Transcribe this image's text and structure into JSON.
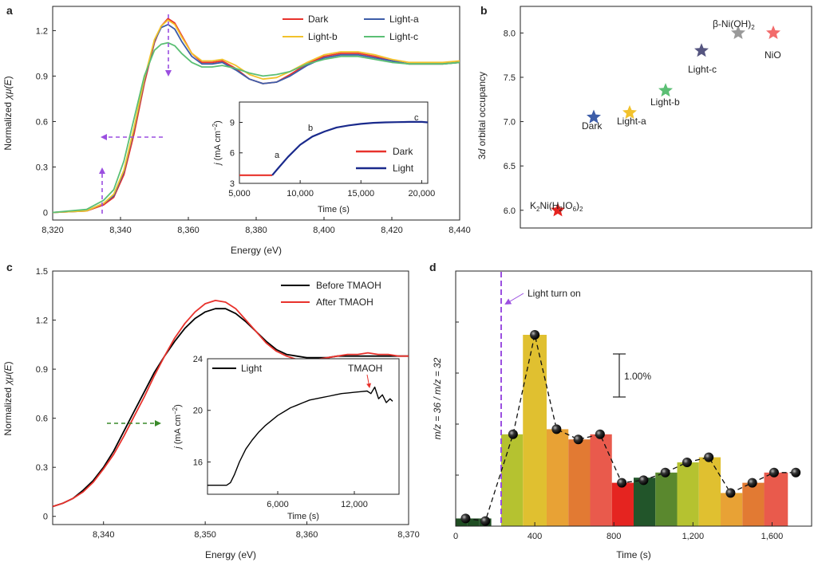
{
  "colors": {
    "dark": "#e8322c",
    "light_a": "#3d5da8",
    "light_b": "#f2c22c",
    "light_c": "#5bbf74",
    "light": "#1a2a8c",
    "before_tmaoh": "#000000",
    "after_tmaoh": "#e8322c",
    "arrow_purple": "#9b4fe0",
    "arrow_green": "#3a8a2a",
    "star_k2ni": "#e52420",
    "star_dark": "#3d5da8",
    "star_light_a": "#f2c22c",
    "star_light_b": "#5bbf74",
    "star_light_c": "#555580",
    "star_beta": "#999999",
    "star_nio": "#f26b6b"
  },
  "chart_data": [
    {
      "panel": "a",
      "type": "line",
      "xlabel": "Energy (eV)",
      "ylabel_pre": "Normalized ",
      "ylabel_chi": "χμ(",
      "ylabel_e": "E",
      "ylabel_post": ")",
      "xlim": [
        8320,
        8440
      ],
      "ylim": [
        -0.05,
        1.36
      ],
      "xticks": [
        8320,
        8340,
        8360,
        8380,
        8400,
        8420,
        8440
      ],
      "xtick_labels": [
        "8,320",
        "8,340",
        "8,360",
        "8,380",
        "8,400",
        "8,420",
        "8,440"
      ],
      "yticks": [
        0,
        0.3,
        0.6,
        0.9,
        1.2
      ],
      "ytick_labels": [
        "0",
        "0.3",
        "0.6",
        "0.9",
        "1.2"
      ],
      "legend": [
        "Dark",
        "Light-a",
        "Light-b",
        "Light-c"
      ],
      "series": [
        {
          "name": "Dark",
          "color_key": "dark",
          "x": [
            8320,
            8330,
            8335,
            8338,
            8341,
            8344,
            8347,
            8350,
            8352,
            8354,
            8356,
            8358,
            8361,
            8364,
            8367,
            8370,
            8374,
            8378,
            8382,
            8386,
            8390,
            8395,
            8400,
            8405,
            8410,
            8415,
            8420,
            8425,
            8430,
            8435,
            8440
          ],
          "y": [
            0,
            0.01,
            0.05,
            0.1,
            0.25,
            0.52,
            0.85,
            1.12,
            1.23,
            1.28,
            1.25,
            1.17,
            1.05,
            0.99,
            0.99,
            1.0,
            0.95,
            0.88,
            0.85,
            0.86,
            0.91,
            0.98,
            1.03,
            1.05,
            1.05,
            1.03,
            1.0,
            0.98,
            0.98,
            0.98,
            0.99
          ]
        },
        {
          "name": "Light-a",
          "color_key": "light_a",
          "x": [
            8320,
            8330,
            8335,
            8338,
            8341,
            8344,
            8347,
            8350,
            8352,
            8354,
            8356,
            8358,
            8361,
            8364,
            8367,
            8370,
            8374,
            8378,
            8382,
            8386,
            8390,
            8395,
            8400,
            8405,
            8410,
            8415,
            8420,
            8425,
            8430,
            8435,
            8440
          ],
          "y": [
            0,
            0.01,
            0.06,
            0.11,
            0.27,
            0.55,
            0.87,
            1.13,
            1.22,
            1.24,
            1.21,
            1.13,
            1.03,
            0.98,
            0.98,
            0.99,
            0.94,
            0.88,
            0.85,
            0.86,
            0.9,
            0.97,
            1.02,
            1.04,
            1.04,
            1.02,
            1.0,
            0.98,
            0.98,
            0.98,
            0.99
          ]
        },
        {
          "name": "Light-b",
          "color_key": "light_b",
          "x": [
            8320,
            8330,
            8335,
            8338,
            8341,
            8344,
            8347,
            8350,
            8352,
            8354,
            8356,
            8358,
            8361,
            8364,
            8367,
            8370,
            8374,
            8378,
            8382,
            8386,
            8390,
            8395,
            8400,
            8405,
            8410,
            8415,
            8420,
            8425,
            8430,
            8435,
            8440
          ],
          "y": [
            0,
            0.01,
            0.06,
            0.12,
            0.28,
            0.56,
            0.88,
            1.14,
            1.23,
            1.27,
            1.24,
            1.16,
            1.05,
            1.0,
            1.0,
            1.01,
            0.97,
            0.91,
            0.88,
            0.89,
            0.93,
            0.99,
            1.04,
            1.06,
            1.06,
            1.04,
            1.01,
            0.99,
            0.99,
            0.99,
            1.0
          ]
        },
        {
          "name": "Light-c",
          "color_key": "light_c",
          "x": [
            8320,
            8330,
            8335,
            8338,
            8341,
            8344,
            8347,
            8350,
            8352,
            8354,
            8356,
            8358,
            8361,
            8364,
            8367,
            8370,
            8374,
            8378,
            8382,
            8386,
            8390,
            8395,
            8400,
            8405,
            8410,
            8415,
            8420,
            8425,
            8430,
            8435,
            8440
          ],
          "y": [
            0,
            0.02,
            0.08,
            0.15,
            0.34,
            0.62,
            0.9,
            1.07,
            1.11,
            1.12,
            1.1,
            1.05,
            0.99,
            0.96,
            0.96,
            0.97,
            0.95,
            0.92,
            0.9,
            0.91,
            0.93,
            0.98,
            1.01,
            1.03,
            1.03,
            1.01,
            0.99,
            0.98,
            0.98,
            0.98,
            0.99
          ]
        }
      ]
    },
    {
      "panel": "a-inset",
      "type": "line",
      "xlabel": "Time (s)",
      "ylabel_j": "j",
      "ylabel_rest": " (mA cm",
      "ylabel_sup": "−2",
      "ylabel_close": ")",
      "xlim": [
        5000,
        20500
      ],
      "ylim": [
        3,
        11
      ],
      "xticks": [
        5000,
        10000,
        15000,
        20000
      ],
      "xtick_labels": [
        "5,000",
        "10,000",
        "15,000",
        "20,000"
      ],
      "yticks": [
        3,
        6,
        9
      ],
      "ytick_labels": [
        "3",
        "6",
        "9"
      ],
      "legend": [
        "Dark",
        "Light"
      ],
      "annotations": [
        "a",
        "b",
        "c"
      ],
      "series": [
        {
          "name": "Dark",
          "color_key": "dark",
          "x": [
            5000,
            6000,
            7000,
            7700
          ],
          "y": [
            3.8,
            3.8,
            3.8,
            3.8
          ]
        },
        {
          "name": "Light",
          "color_key": "light",
          "x": [
            7700,
            8200,
            9000,
            10000,
            11000,
            12000,
            13000,
            14000,
            15000,
            16000,
            17000,
            18000,
            19000,
            20000,
            20500
          ],
          "y": [
            3.8,
            4.5,
            5.6,
            6.8,
            7.6,
            8.1,
            8.5,
            8.7,
            8.85,
            8.95,
            9.0,
            9.02,
            9.05,
            9.05,
            9.0
          ]
        }
      ]
    },
    {
      "panel": "b",
      "type": "scatter",
      "ylabel_pre": "3",
      "ylabel_d": "d",
      "ylabel_post": " orbital occupancy",
      "ylim": [
        5.8,
        8.3
      ],
      "yticks": [
        6.0,
        6.5,
        7.0,
        7.5,
        8.0
      ],
      "ytick_labels": [
        "6.0",
        "6.5",
        "7.0",
        "7.5",
        "8.0"
      ],
      "points": [
        {
          "label_main": "K",
          "label_s1": "2",
          "label_m2": "Ni(H",
          "label_s2": "2",
          "label_m3": "IO",
          "label_s3": "6",
          "label_m4": ")",
          "label_s4": "2",
          "y": 6.0,
          "color_key": "star_k2ni"
        },
        {
          "label": "Dark",
          "y": 7.05,
          "color_key": "star_dark"
        },
        {
          "label": "Light-a",
          "y": 7.1,
          "color_key": "star_light_a"
        },
        {
          "label": "Light-b",
          "y": 7.35,
          "color_key": "star_light_b"
        },
        {
          "label": "Light-c",
          "y": 7.8,
          "color_key": "star_light_c"
        },
        {
          "label_main": "β-Ni(OH)",
          "label_s1": "2",
          "y": 8.0,
          "color_key": "star_beta"
        },
        {
          "label": "NiO",
          "y": 8.0,
          "color_key": "star_nio"
        }
      ]
    },
    {
      "panel": "c",
      "type": "line",
      "xlabel": "Energy (eV)",
      "ylabel_pre": "Normalized ",
      "ylabel_chi": "χμ(",
      "ylabel_e": "E",
      "ylabel_post": ")",
      "xlim": [
        8335,
        8370
      ],
      "ylim": [
        -0.05,
        1.5
      ],
      "xticks": [
        8340,
        8350,
        8360,
        8370
      ],
      "xtick_labels": [
        "8,340",
        "8,350",
        "8,360",
        "8,370"
      ],
      "yticks": [
        0,
        0.3,
        0.6,
        0.9,
        1.2,
        1.5
      ],
      "ytick_labels": [
        "0",
        "0.3",
        "0.6",
        "0.9",
        "1.2",
        "1.5"
      ],
      "legend": [
        "Before TMAOH",
        "After TMAOH"
      ],
      "series": [
        {
          "name": "Before TMAOH",
          "color_key": "before_tmaoh",
          "x": [
            8335,
            8336,
            8337,
            8338,
            8339,
            8340,
            8341,
            8342,
            8343,
            8344,
            8345,
            8346,
            8347,
            8348,
            8349,
            8350,
            8351,
            8352,
            8353,
            8354,
            8355,
            8356,
            8357,
            8358,
            8359,
            8360,
            8361,
            8362,
            8363,
            8364,
            8365,
            8366,
            8367,
            8368,
            8369,
            8370
          ],
          "y": [
            0.06,
            0.08,
            0.11,
            0.16,
            0.22,
            0.3,
            0.4,
            0.52,
            0.64,
            0.76,
            0.88,
            0.98,
            1.07,
            1.15,
            1.21,
            1.25,
            1.27,
            1.27,
            1.24,
            1.19,
            1.13,
            1.07,
            1.02,
            0.99,
            0.98,
            0.97,
            0.97,
            0.97,
            0.98,
            0.98,
            0.98,
            0.98,
            0.98,
            0.98,
            0.98,
            0.98
          ]
        },
        {
          "name": "After TMAOH",
          "color_key": "after_tmaoh",
          "x": [
            8335,
            8336,
            8337,
            8338,
            8339,
            8340,
            8341,
            8342,
            8343,
            8344,
            8345,
            8346,
            8347,
            8348,
            8349,
            8350,
            8351,
            8352,
            8353,
            8354,
            8355,
            8356,
            8357,
            8358,
            8359,
            8360,
            8361,
            8362,
            8363,
            8364,
            8365,
            8366,
            8367,
            8368,
            8369,
            8370
          ],
          "y": [
            0.06,
            0.08,
            0.11,
            0.15,
            0.21,
            0.29,
            0.38,
            0.49,
            0.61,
            0.73,
            0.86,
            0.98,
            1.09,
            1.18,
            1.25,
            1.3,
            1.32,
            1.31,
            1.27,
            1.2,
            1.13,
            1.06,
            1.01,
            0.98,
            0.96,
            0.96,
            0.96,
            0.97,
            0.98,
            0.99,
            0.99,
            1.0,
            0.99,
            0.99,
            0.98,
            0.98
          ]
        }
      ]
    },
    {
      "panel": "c-inset",
      "type": "line",
      "xlabel": "Time (s)",
      "ylabel_j": "j",
      "ylabel_rest": " (mA cm",
      "ylabel_sup": "−2",
      "ylabel_close": ")",
      "xlim": [
        500,
        15500
      ],
      "ylim": [
        13.5,
        24
      ],
      "xticks": [
        6000,
        12000
      ],
      "xtick_labels": [
        "6,000",
        "12,000"
      ],
      "yticks": [
        16,
        20,
        24
      ],
      "ytick_labels": [
        "16",
        "20",
        "24"
      ],
      "legend": [
        "Light"
      ],
      "annotation": "TMAOH",
      "series": [
        {
          "name": "Light",
          "color_key": "before_tmaoh",
          "x": [
            500,
            1000,
            1500,
            2000,
            2300,
            2600,
            3000,
            3500,
            4000,
            4500,
            5000,
            5500,
            6000,
            6500,
            7000,
            7500,
            8000,
            8500,
            9000,
            9500,
            10000,
            10500,
            11000,
            11500,
            12000,
            12500,
            13000,
            13300,
            13600,
            13900,
            14200,
            14500,
            14800,
            15000
          ],
          "y": [
            14.2,
            14.2,
            14.2,
            14.2,
            14.4,
            15.0,
            16.0,
            17.0,
            17.7,
            18.3,
            18.8,
            19.2,
            19.6,
            19.9,
            20.2,
            20.4,
            20.6,
            20.8,
            20.9,
            21.0,
            21.1,
            21.2,
            21.3,
            21.35,
            21.4,
            21.45,
            21.5,
            21.3,
            21.8,
            20.9,
            21.2,
            20.6,
            20.9,
            20.7
          ]
        }
      ]
    },
    {
      "panel": "d",
      "type": "bar",
      "xlabel": "Time (s)",
      "ylabel": "m/z = 36 / m/z = 32",
      "xlim": [
        0,
        1800
      ],
      "xticks": [
        0,
        400,
        800,
        1200,
        1600
      ],
      "xtick_labels": [
        "0",
        "400",
        "800",
        "1,200",
        "1,600"
      ],
      "ylim": [
        0,
        10
      ],
      "scale_bar": "1.00%",
      "annotation": "Light turn on",
      "light_on_x": 230,
      "bars": [
        {
          "x0": 0,
          "x1": 60,
          "value": 0.3,
          "color": "#1f4d22"
        },
        {
          "x0": 60,
          "x1": 120,
          "value": 0.3,
          "color": "#1f4d22"
        },
        {
          "x0": 120,
          "x1": 180,
          "value": 0.3,
          "color": "#1f4d22"
        },
        {
          "x0": 230,
          "x1": 340,
          "value": 3.6,
          "color": "#b5c230"
        },
        {
          "x0": 340,
          "x1": 460,
          "value": 7.5,
          "color": "#e0c030"
        },
        {
          "x0": 460,
          "x1": 570,
          "value": 3.8,
          "color": "#e8a235"
        },
        {
          "x0": 570,
          "x1": 680,
          "value": 3.4,
          "color": "#e27a33"
        },
        {
          "x0": 680,
          "x1": 790,
          "value": 3.6,
          "color": "#e95a4c"
        },
        {
          "x0": 790,
          "x1": 900,
          "value": 1.7,
          "color": "#e52420"
        },
        {
          "x0": 900,
          "x1": 1010,
          "value": 1.9,
          "color": "#22552a"
        },
        {
          "x0": 1010,
          "x1": 1120,
          "value": 2.1,
          "color": "#5a882e"
        },
        {
          "x0": 1120,
          "x1": 1230,
          "value": 2.5,
          "color": "#b5c230"
        },
        {
          "x0": 1230,
          "x1": 1340,
          "value": 2.7,
          "color": "#e0c030"
        },
        {
          "x0": 1340,
          "x1": 1450,
          "value": 1.3,
          "color": "#e8a235"
        },
        {
          "x0": 1450,
          "x1": 1560,
          "value": 1.7,
          "color": "#e27a33"
        },
        {
          "x0": 1560,
          "x1": 1680,
          "value": 2.1,
          "color": "#e95a4c"
        }
      ],
      "points": {
        "x": [
          50,
          150,
          290,
          400,
          510,
          620,
          730,
          840,
          950,
          1060,
          1170,
          1280,
          1390,
          1500,
          1610,
          1720
        ],
        "y": [
          0.3,
          0.2,
          3.6,
          7.5,
          3.8,
          3.4,
          3.6,
          1.7,
          1.8,
          2.1,
          2.5,
          2.7,
          1.3,
          1.7,
          2.1,
          2.1
        ]
      }
    }
  ],
  "panels": {
    "a": "a",
    "b": "b",
    "c": "c",
    "d": "d"
  }
}
